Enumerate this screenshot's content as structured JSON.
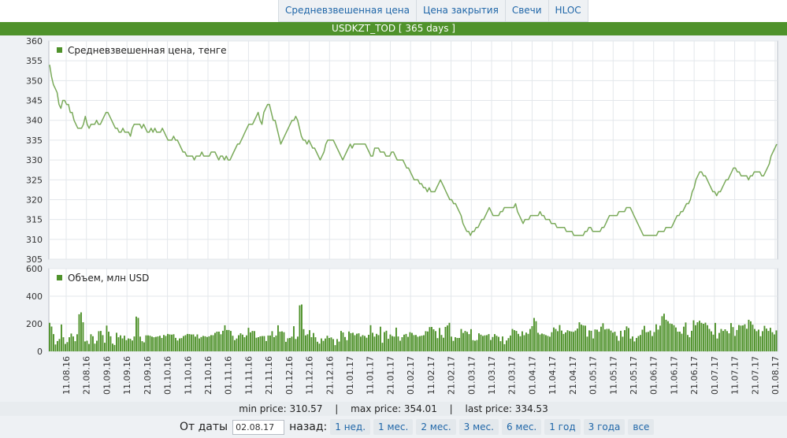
{
  "tabs": [
    "Средневзвешенная цена",
    "Цена закрытия",
    "Свечи",
    "HLOC"
  ],
  "title": "USDKZT_TOD [ 365 days ]",
  "stats": {
    "min": "min price: 310.57",
    "max": "max price: 354.01",
    "last": "last price: 334.53",
    "sep": "|"
  },
  "controls": {
    "from_label": "От даты",
    "date_value": "02.08.17",
    "back_label": "назад:",
    "periods": [
      "1 нед.",
      "1 мес.",
      "2 мес.",
      "3 мес.",
      "6 мес.",
      "1 год",
      "3 года",
      "все"
    ]
  },
  "colors": {
    "accent": "#4f922b",
    "line": "#7aaa5a",
    "bar": "#4f922b",
    "link": "#1f66a8"
  },
  "chart_data": [
    {
      "type": "line",
      "legend": "Средневзвешенная цена, тенге",
      "ylim": [
        305,
        360
      ],
      "yticks": [
        305,
        310,
        315,
        320,
        325,
        330,
        335,
        340,
        345,
        350,
        355,
        360
      ],
      "x_labels": [
        "11.08.16",
        "21.08.16",
        "01.09.16",
        "11.09.16",
        "21.09.16",
        "01.10.16",
        "11.10.16",
        "21.10.16",
        "01.11.16",
        "11.11.16",
        "21.11.16",
        "01.12.16",
        "11.12.16",
        "21.12.16",
        "01.01.17",
        "11.01.17",
        "21.01.17",
        "01.02.17",
        "11.02.17",
        "21.02.17",
        "01.03.17",
        "11.03.17",
        "21.03.17",
        "01.04.17",
        "11.04.17",
        "21.04.17",
        "01.05.17",
        "11.05.17",
        "21.05.17",
        "01.06.17",
        "11.06.17",
        "21.06.17",
        "01.07.17",
        "11.07.17",
        "21.07.17",
        "01.08.17"
      ],
      "values": [
        354,
        351,
        349,
        348,
        347,
        344,
        343,
        345,
        345,
        344,
        344,
        342,
        342,
        340,
        339,
        338,
        338,
        338,
        339,
        341,
        339,
        338,
        339,
        339,
        339,
        340,
        339,
        339,
        340,
        341,
        342,
        342,
        341,
        340,
        339,
        338,
        338,
        337,
        337,
        338,
        337,
        337,
        337,
        336,
        338,
        339,
        339,
        339,
        339,
        338,
        339,
        338,
        337,
        337,
        338,
        337,
        338,
        337,
        337,
        337,
        338,
        337,
        336,
        335,
        335,
        335,
        336,
        335,
        335,
        334,
        333,
        332,
        332,
        331,
        331,
        331,
        331,
        330,
        331,
        331,
        331,
        332,
        331,
        331,
        331,
        331,
        332,
        332,
        332,
        331,
        330,
        331,
        331,
        330,
        331,
        330,
        330,
        331,
        332,
        333,
        334,
        334,
        335,
        336,
        337,
        338,
        339,
        339,
        339,
        340,
        341,
        342,
        340,
        339,
        342,
        343,
        344,
        344,
        342,
        340,
        340,
        338,
        336,
        334,
        335,
        336,
        337,
        338,
        339,
        340,
        340,
        341,
        340,
        338,
        336,
        335,
        335,
        334,
        335,
        334,
        333,
        333,
        332,
        331,
        330,
        331,
        332,
        334,
        335,
        335,
        335,
        335,
        334,
        333,
        332,
        331,
        330,
        331,
        332,
        333,
        334,
        333,
        334,
        334,
        334,
        334,
        334,
        334,
        334,
        333,
        332,
        331,
        331,
        333,
        333,
        333,
        332,
        332,
        332,
        331,
        331,
        331,
        332,
        332,
        331,
        330,
        330,
        330,
        330,
        329,
        328,
        328,
        327,
        326,
        325,
        325,
        325,
        324,
        324,
        323,
        323,
        322,
        323,
        322,
        322,
        322,
        323,
        324,
        325,
        324,
        323,
        322,
        321,
        320,
        320,
        319,
        319,
        318,
        317,
        316,
        314,
        313,
        312,
        312,
        311,
        312,
        312,
        313,
        313,
        314,
        315,
        315,
        316,
        317,
        318,
        317,
        316,
        316,
        316,
        316,
        317,
        317,
        318,
        318,
        318,
        318,
        318,
        318,
        319,
        317,
        316,
        315,
        314,
        315,
        315,
        315,
        316,
        316,
        316,
        316,
        316,
        317,
        316,
        316,
        315,
        315,
        315,
        314,
        314,
        314,
        313,
        313,
        313,
        313,
        313,
        312,
        312,
        312,
        312,
        311,
        311,
        311,
        311,
        311,
        311,
        312,
        312,
        313,
        313,
        312,
        312,
        312,
        312,
        312,
        313,
        313,
        314,
        315,
        316,
        316,
        316,
        316,
        316,
        317,
        317,
        317,
        317,
        318,
        318,
        318,
        317,
        316,
        315,
        314,
        313,
        312,
        311,
        311,
        311,
        311,
        311,
        311,
        311,
        311,
        312,
        312,
        312,
        312,
        313,
        313,
        313,
        313,
        314,
        315,
        316,
        316,
        317,
        317,
        318,
        319,
        319,
        320,
        322,
        323,
        325,
        326,
        327,
        327,
        326,
        326,
        325,
        324,
        323,
        322,
        322,
        321,
        322,
        322,
        323,
        324,
        325,
        325,
        326,
        327,
        328,
        328,
        327,
        327,
        326,
        326,
        326,
        326,
        325,
        326,
        326,
        327,
        327,
        327,
        327,
        326,
        326,
        327,
        328,
        329,
        331,
        332,
        333,
        334
      ]
    },
    {
      "type": "bar",
      "legend": "Объем, млн USD",
      "ylim": [
        0,
        600
      ],
      "yticks": [
        0,
        200,
        400,
        600
      ],
      "values": [
        207,
        180,
        125,
        50,
        75,
        90,
        195,
        102,
        54,
        67,
        102,
        129,
        108,
        74,
        124,
        269,
        283,
        211,
        72,
        77,
        54,
        124,
        110,
        56,
        77,
        146,
        148,
        118,
        62,
        187,
        143,
        109,
        56,
        46,
        135,
        102,
        116,
        94,
        114,
        81,
        94,
        91,
        79,
        108,
        252,
        243,
        107,
        74,
        65,
        116,
        116,
        113,
        107,
        102,
        105,
        108,
        113,
        97,
        119,
        112,
        126,
        123,
        121,
        124,
        98,
        79,
        94,
        96,
        111,
        117,
        126,
        125,
        122,
        123,
        107,
        123,
        94,
        104,
        112,
        109,
        104,
        109,
        118,
        117,
        134,
        143,
        143,
        124,
        149,
        189,
        155,
        155,
        148,
        113,
        81,
        93,
        117,
        131,
        121,
        102,
        116,
        171,
        138,
        148,
        147,
        99,
        103,
        109,
        111,
        111,
        75,
        115,
        115,
        146,
        103,
        115,
        189,
        143,
        145,
        139,
        69,
        95,
        97,
        107,
        182,
        90,
        107,
        334,
        340,
        161,
        116,
        124,
        154,
        103,
        133,
        102,
        70,
        56,
        94,
        76,
        93,
        113,
        97,
        101,
        89,
        45,
        89,
        71,
        148,
        137,
        104,
        81,
        144,
        132,
        135,
        117,
        128,
        131,
        107,
        118,
        112,
        99,
        120,
        190,
        135,
        107,
        127,
        118,
        179,
        62,
        140,
        150,
        91,
        122,
        111,
        107,
        172,
        108,
        77,
        103,
        121,
        126,
        105,
        139,
        134,
        118,
        119,
        106,
        111,
        114,
        117,
        146,
        144,
        176,
        177,
        160,
        147,
        96,
        170,
        119,
        99,
        177,
        188,
        207,
        107,
        76,
        102,
        97,
        97,
        162,
        134,
        148,
        141,
        125,
        161,
        81,
        77,
        82,
        131,
        121,
        112,
        116,
        118,
        125,
        82,
        104,
        125,
        113,
        105,
        74,
        108,
        52,
        79,
        96,
        115,
        162,
        154,
        148,
        127,
        110,
        145,
        117,
        136,
        127,
        162,
        183,
        242,
        219,
        135,
        122,
        129,
        124,
        118,
        112,
        106,
        139,
        173,
        162,
        146,
        191,
        151,
        126,
        137,
        153,
        147,
        144,
        141,
        151,
        165,
        211,
        194,
        188,
        186,
        107,
        152,
        149,
        94,
        159,
        157,
        142,
        179,
        204,
        159,
        163,
        163,
        151,
        136,
        142,
        112,
        77,
        149,
        106,
        154,
        181,
        169,
        92,
        108,
        72,
        97,
        111,
        119,
        157,
        185,
        139,
        141,
        151,
        111,
        140,
        196,
        158,
        187,
        255,
        273,
        229,
        219,
        202,
        199,
        190,
        173,
        143,
        143,
        128,
        179,
        209,
        119,
        102,
        149,
        225,
        190,
        211,
        222,
        207,
        200,
        208,
        190,
        163,
        145,
        121,
        206,
        93,
        134,
        162,
        148,
        160,
        147,
        131,
        205,
        176,
        112,
        155,
        191,
        187,
        188,
        196,
        164,
        229,
        218,
        193,
        162,
        146,
        158,
        110,
        146,
        185,
        165,
        148,
        171,
        139,
        123,
        152
      ]
    }
  ]
}
